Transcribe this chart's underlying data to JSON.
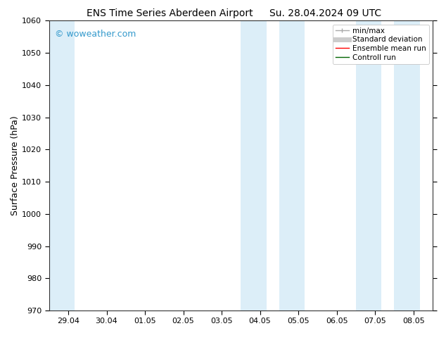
{
  "title_left": "ENS Time Series Aberdeen Airport",
  "title_right": "Su. 28.04.2024 09 UTC",
  "ylabel": "Surface Pressure (hPa)",
  "ylim": [
    970,
    1060
  ],
  "yticks": [
    970,
    980,
    990,
    1000,
    1010,
    1020,
    1030,
    1040,
    1050,
    1060
  ],
  "x_tick_labels": [
    "29.04",
    "30.04",
    "01.05",
    "02.05",
    "03.05",
    "04.05",
    "05.05",
    "06.05",
    "07.05",
    "08.05"
  ],
  "x_tick_positions": [
    0,
    1,
    2,
    3,
    4,
    5,
    6,
    7,
    8,
    9
  ],
  "xlim": [
    -0.5,
    9.5
  ],
  "shaded_bands": [
    {
      "x_start": -0.5,
      "x_end": 0.167,
      "color": "#dceef8"
    },
    {
      "x_start": 4.5,
      "x_end": 5.167,
      "color": "#dceef8"
    },
    {
      "x_start": 5.5,
      "x_end": 6.167,
      "color": "#dceef8"
    },
    {
      "x_start": 7.5,
      "x_end": 8.167,
      "color": "#dceef8"
    },
    {
      "x_start": 8.5,
      "x_end": 9.167,
      "color": "#dceef8"
    }
  ],
  "watermark_text": "© woweather.com",
  "watermark_color": "#3399cc",
  "watermark_fontsize": 9,
  "legend_items": [
    {
      "label": "min/max",
      "color": "#aaaaaa",
      "lw": 1.0
    },
    {
      "label": "Standard deviation",
      "color": "#cccccc",
      "lw": 5
    },
    {
      "label": "Ensemble mean run",
      "color": "red",
      "lw": 1.0
    },
    {
      "label": "Controll run",
      "color": "darkgreen",
      "lw": 1.0
    }
  ],
  "background_color": "#ffffff",
  "plot_bg_color": "#ffffff",
  "title_fontsize": 10,
  "tick_fontsize": 8,
  "ylabel_fontsize": 9
}
